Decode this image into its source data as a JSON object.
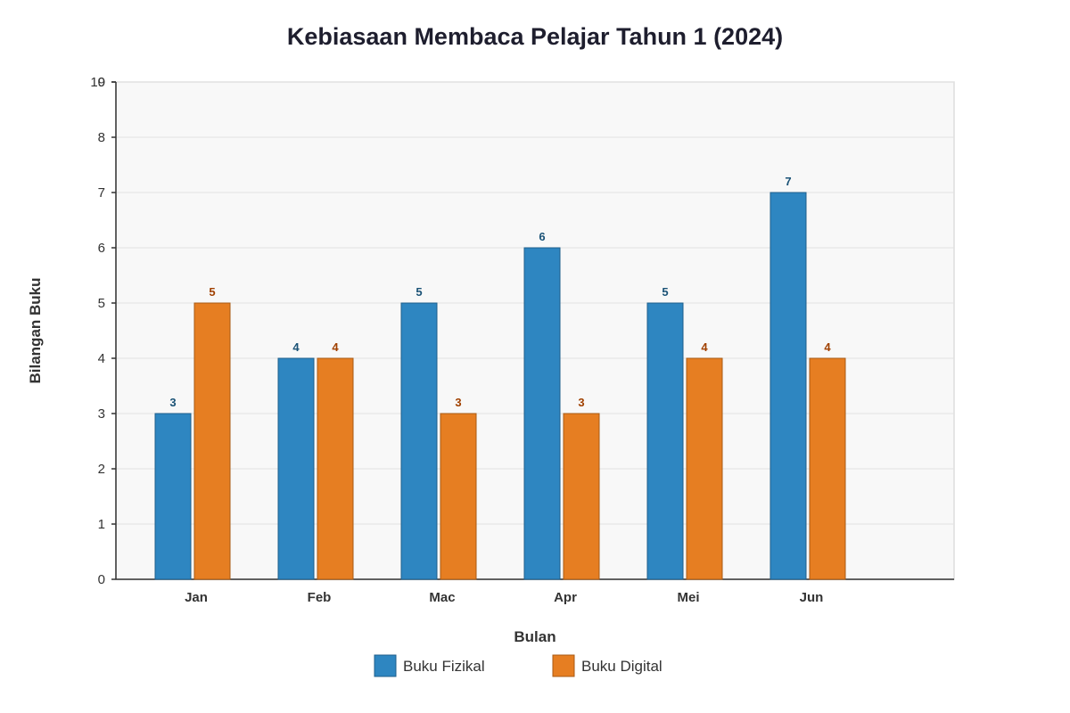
{
  "chart_data": {
    "type": "bar",
    "title": "Kebiasaan Membaca Pelajar Tahun 1 (2024)",
    "xlabel": "Bulan",
    "ylabel": "Bilangan Buku",
    "categories": [
      "Jan",
      "Feb",
      "Mac",
      "Apr",
      "Mei",
      "Jun"
    ],
    "ylim": [
      0,
      9
    ],
    "yticks": [
      0,
      1,
      2,
      3,
      4,
      5,
      6,
      7,
      8,
      9,
      10
    ],
    "grid": true,
    "legend_position": "bottom",
    "series": [
      {
        "name": "Buku Fizikal",
        "values": [
          3,
          4,
          5,
          6,
          5,
          7
        ],
        "color": "#2e86c1",
        "stroke": "#1f5f8b",
        "label_color": "#1a5276"
      },
      {
        "name": "Buku Digital",
        "values": [
          5,
          4,
          3,
          3,
          4,
          4
        ],
        "color": "#e67e22",
        "stroke": "#a85a14",
        "label_color": "#a04000"
      }
    ]
  }
}
